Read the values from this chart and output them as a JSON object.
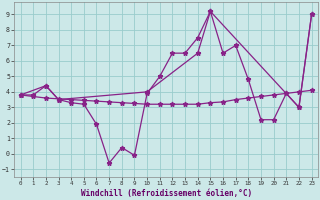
{
  "background_color": "#cce8e8",
  "grid_color": "#99cccc",
  "line_color": "#882288",
  "xlabel": "Windchill (Refroidissement éolien,°C)",
  "xlim": [
    -0.5,
    23.5
  ],
  "ylim": [
    -1.5,
    9.8
  ],
  "yticks": [
    -1,
    0,
    1,
    2,
    3,
    4,
    5,
    6,
    7,
    8,
    9
  ],
  "xticks": [
    0,
    1,
    2,
    3,
    4,
    5,
    6,
    7,
    8,
    9,
    10,
    11,
    12,
    13,
    14,
    15,
    16,
    17,
    18,
    19,
    20,
    21,
    22,
    23
  ],
  "line1_x": [
    0,
    1,
    2,
    3,
    4,
    5,
    6,
    7,
    8,
    9,
    10,
    11,
    12,
    13,
    14,
    15,
    16,
    17,
    18,
    19,
    20,
    21,
    22,
    23
  ],
  "line1_y": [
    3.8,
    3.8,
    4.4,
    3.5,
    3.3,
    3.2,
    1.9,
    -0.6,
    0.4,
    -0.1,
    3.9,
    5.0,
    6.5,
    6.5,
    7.5,
    9.2,
    6.5,
    7.0,
    4.8,
    2.2,
    2.2,
    3.9,
    3.0,
    9.0
  ],
  "line2_x": [
    0,
    2,
    3,
    10,
    14,
    15,
    22,
    23
  ],
  "line2_y": [
    3.8,
    4.4,
    3.5,
    4.0,
    6.5,
    9.2,
    3.0,
    9.0
  ],
  "line3_x": [
    0,
    1,
    2,
    3,
    4,
    5,
    6,
    7,
    8,
    9,
    10,
    11,
    12,
    13,
    14,
    15,
    16,
    17,
    18,
    19,
    20,
    21,
    22,
    23
  ],
  "line3_y": [
    3.8,
    3.7,
    3.6,
    3.55,
    3.5,
    3.45,
    3.4,
    3.35,
    3.3,
    3.25,
    3.2,
    3.2,
    3.2,
    3.2,
    3.2,
    3.3,
    3.35,
    3.5,
    3.6,
    3.7,
    3.8,
    3.9,
    4.0,
    4.1
  ]
}
